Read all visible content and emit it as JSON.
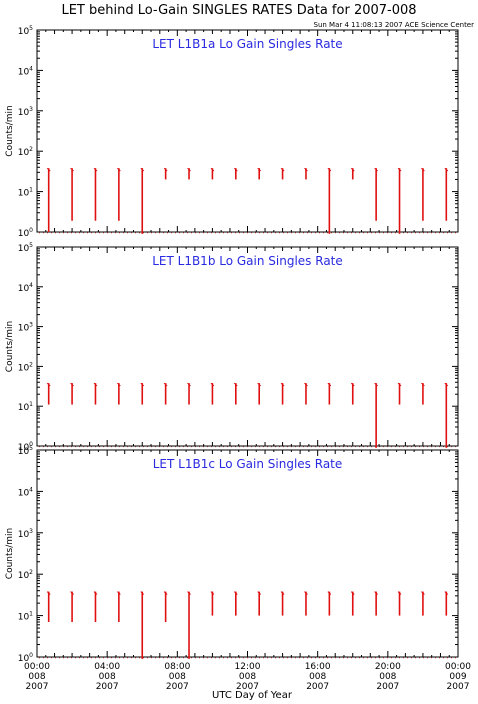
{
  "chart_data": {
    "title": "LET behind Lo-Gain SINGLES RATES Data for 2007-008",
    "timestamp": "Sun Mar  4 11:08:13 2007 ACE Science Center",
    "xlabel": "UTC Day of Year",
    "ylabel": "Counts/min",
    "colors": {
      "series": "#e01010",
      "panel_title": "#2a2ae0",
      "axes": "#000000"
    },
    "x_range_hours": [
      0,
      24
    ],
    "x_ticks": [
      {
        "hour": 0,
        "time": "00:00",
        "doy": "008",
        "year": "2007"
      },
      {
        "hour": 4,
        "time": "04:00",
        "doy": "008",
        "year": "2007"
      },
      {
        "hour": 8,
        "time": "08:00",
        "doy": "008",
        "year": "2007"
      },
      {
        "hour": 12,
        "time": "12:00",
        "doy": "008",
        "year": "2007"
      },
      {
        "hour": 16,
        "time": "16:00",
        "doy": "008",
        "year": "2007"
      },
      {
        "hour": 20,
        "time": "20:00",
        "doy": "008",
        "year": "2007"
      },
      {
        "hour": 24,
        "time": "00:00",
        "doy": "009",
        "year": "2007"
      }
    ],
    "y_scale": "log",
    "y_range": [
      1,
      100000
    ],
    "y_ticks": [
      {
        "value": 1,
        "base": "10",
        "exp": "0"
      },
      {
        "value": 10,
        "base": "10",
        "exp": "1"
      },
      {
        "value": 100,
        "base": "10",
        "exp": "2"
      },
      {
        "value": 1000,
        "base": "10",
        "exp": "3"
      },
      {
        "value": 10000,
        "base": "10",
        "exp": "4"
      },
      {
        "value": 100000,
        "base": "10",
        "exp": "5"
      }
    ],
    "panels": [
      {
        "type": "line",
        "title": "LET L1B1a Lo Gain Singles Rate",
        "spikes": [
          {
            "hour": 0.45,
            "high": 38,
            "low": 1.0
          },
          {
            "hour": 1.45,
            "high": 38,
            "low": 1.9
          },
          {
            "hour": 2.45,
            "high": 38,
            "low": 1.9
          },
          {
            "hour": 3.45,
            "high": 38,
            "low": 1.9
          },
          {
            "hour": 4.45,
            "high": 38,
            "low": 0.9
          },
          {
            "hour": 5.45,
            "high": 38,
            "low": 20
          },
          {
            "hour": 6.45,
            "high": 38,
            "low": 20
          },
          {
            "hour": 7.45,
            "high": 38,
            "low": 20
          },
          {
            "hour": 8.45,
            "high": 38,
            "low": 20
          },
          {
            "hour": 9.45,
            "high": 38,
            "low": 20
          },
          {
            "hour": 10.45,
            "high": 38,
            "low": 20
          },
          {
            "hour": 11.45,
            "high": 38,
            "low": 20
          },
          {
            "hour": 12.45,
            "high": 38,
            "low": 0.9
          },
          {
            "hour": 13.45,
            "high": 38,
            "low": 20
          },
          {
            "hour": 14.45,
            "high": 38,
            "low": 1.9
          },
          {
            "hour": 15.45,
            "high": 38,
            "low": 0.9
          },
          {
            "hour": 16.45,
            "high": 38,
            "low": 1.9
          },
          {
            "hour": 17.45,
            "high": 38,
            "low": 1.9
          }
        ],
        "baseline": 0.95
      },
      {
        "type": "line",
        "title": "LET L1B1b Lo Gain Singles Rate",
        "spikes": [
          {
            "hour": 0.5,
            "high": 38,
            "low": 11
          },
          {
            "hour": 1.5,
            "high": 38,
            "low": 11
          },
          {
            "hour": 2.5,
            "high": 38,
            "low": 11
          },
          {
            "hour": 3.5,
            "high": 38,
            "low": 11
          },
          {
            "hour": 4.5,
            "high": 38,
            "low": 11
          },
          {
            "hour": 5.5,
            "high": 38,
            "low": 11
          },
          {
            "hour": 6.5,
            "high": 38,
            "low": 11
          },
          {
            "hour": 7.5,
            "high": 38,
            "low": 11
          },
          {
            "hour": 8.5,
            "high": 38,
            "low": 11
          },
          {
            "hour": 9.5,
            "high": 38,
            "low": 11
          },
          {
            "hour": 10.5,
            "high": 38,
            "low": 11
          },
          {
            "hour": 11.5,
            "high": 38,
            "low": 11
          },
          {
            "hour": 12.5,
            "high": 38,
            "low": 11
          },
          {
            "hour": 13.5,
            "high": 38,
            "low": 11
          },
          {
            "hour": 14.5,
            "high": 38,
            "low": 0.9
          },
          {
            "hour": 15.5,
            "high": 38,
            "low": 11
          },
          {
            "hour": 16.5,
            "high": 38,
            "low": 11
          },
          {
            "hour": 17.5,
            "high": 38,
            "low": 0.9
          }
        ],
        "baseline": 0.95
      },
      {
        "type": "line",
        "title": "LET L1B1c Lo Gain Singles Rate",
        "spikes": [
          {
            "hour": 0.55,
            "high": 38,
            "low": 7
          },
          {
            "hour": 1.55,
            "high": 38,
            "low": 7
          },
          {
            "hour": 2.55,
            "high": 38,
            "low": 7
          },
          {
            "hour": 3.55,
            "high": 38,
            "low": 7
          },
          {
            "hour": 4.55,
            "high": 38,
            "low": 0.9
          },
          {
            "hour": 5.55,
            "high": 38,
            "low": 7
          },
          {
            "hour": 6.55,
            "high": 38,
            "low": 0.9
          },
          {
            "hour": 7.55,
            "high": 38,
            "low": 10
          },
          {
            "hour": 8.55,
            "high": 38,
            "low": 10
          },
          {
            "hour": 9.55,
            "high": 38,
            "low": 10
          },
          {
            "hour": 10.55,
            "high": 38,
            "low": 10
          },
          {
            "hour": 11.55,
            "high": 38,
            "low": 10
          },
          {
            "hour": 12.55,
            "high": 38,
            "low": 10
          },
          {
            "hour": 13.55,
            "high": 38,
            "low": 10
          },
          {
            "hour": 14.55,
            "high": 38,
            "low": 10
          },
          {
            "hour": 15.55,
            "high": 38,
            "low": 10
          },
          {
            "hour": 16.55,
            "high": 38,
            "low": 10
          },
          {
            "hour": 17.55,
            "high": 38,
            "low": 10
          }
        ],
        "baseline": 0.95
      }
    ]
  }
}
